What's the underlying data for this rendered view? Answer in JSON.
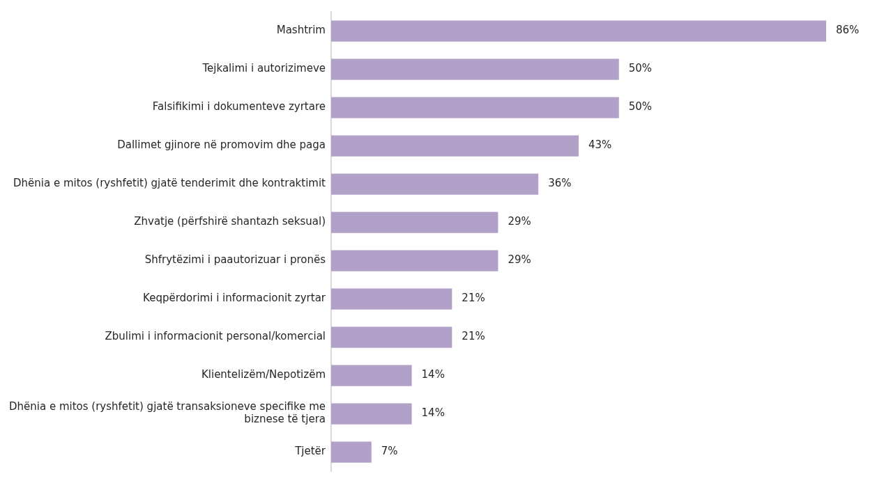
{
  "chart_data": {
    "type": "bar",
    "orientation": "horizontal",
    "categories": [
      "Mashtrim",
      "Tejkalimi i autorizimeve",
      "Falsifikimi i dokumenteve zyrtare",
      "Dallimet gjinore në promovim dhe paga",
      "Dhënia e mitos (ryshfetit) gjatë tenderimit dhe kontraktimit",
      "Zhvatje (përfshirë shantazh seksual)",
      "Shfrytëzimi i paautorizuar i pronës",
      "Keqpërdorimi i informacionit zyrtar",
      "Zbulimi i informacionit personal/komercial",
      "Klientelizëm/Nepotizëm",
      "Dhënia e mitos (ryshfetit) gjatë transaksioneve specifike me\nbiznese të tjera",
      "Tjetër"
    ],
    "values": [
      86,
      50,
      50,
      43,
      36,
      29,
      29,
      21,
      21,
      14,
      14,
      7
    ],
    "value_labels": [
      "86%",
      "50%",
      "50%",
      "43%",
      "36%",
      "29%",
      "29%",
      "21%",
      "21%",
      "14%",
      "14%",
      "7%"
    ],
    "color": "#b1a0c7",
    "grid": false,
    "legend": false
  }
}
